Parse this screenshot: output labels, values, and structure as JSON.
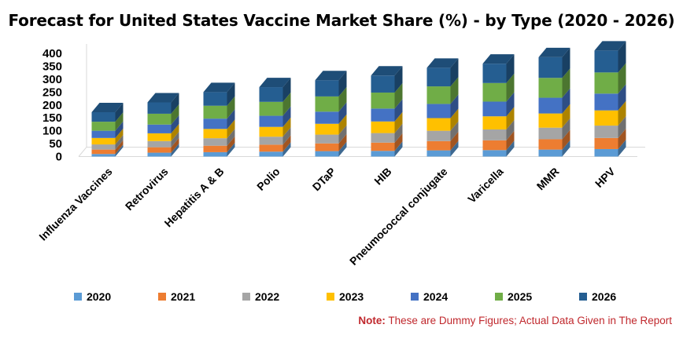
{
  "chart_data": {
    "type": "bar",
    "stacked": true,
    "style": "3d",
    "title": "Forecast for United States Vaccine Market Share (%) - by Type (2020 - 2026)",
    "categories": [
      "Influenza Vaccines",
      "Retrovirus",
      "Hepatitis A & B",
      "Polio",
      "DTaP",
      "HIB",
      "Pneumococcal conjugate",
      "Varicella",
      "MMR",
      "HPV"
    ],
    "series": [
      {
        "name": "2020",
        "color": "#5b9bd5",
        "values": [
          10,
          15,
          17,
          19,
          21,
          22,
          24,
          25,
          27,
          29
        ]
      },
      {
        "name": "2021",
        "color": "#ed7d31",
        "values": [
          17,
          21,
          25,
          27,
          30,
          32,
          36,
          38,
          40,
          43
        ]
      },
      {
        "name": "2022",
        "color": "#a5a5a5",
        "values": [
          20,
          24,
          29,
          31,
          34,
          37,
          40,
          42,
          45,
          48
        ]
      },
      {
        "name": "2023",
        "color": "#ffc000",
        "values": [
          25,
          30,
          36,
          38,
          42,
          45,
          49,
          51,
          55,
          59
        ]
      },
      {
        "name": "2024",
        "color": "#4472c4",
        "values": [
          28,
          34,
          40,
          43,
          47,
          50,
          55,
          57,
          61,
          65
        ]
      },
      {
        "name": "2025",
        "color": "#70ad47",
        "values": [
          35,
          42,
          50,
          54,
          59,
          62,
          68,
          72,
          77,
          82
        ]
      },
      {
        "name": "2026",
        "color": "#255e91",
        "values": [
          37,
          44,
          53,
          57,
          63,
          66,
          72,
          75,
          80,
          85
        ]
      }
    ],
    "ylim": [
      0,
      400
    ],
    "yticks": [
      0,
      50,
      100,
      150,
      200,
      250,
      300,
      350,
      400
    ],
    "grid": false,
    "legend_position": "bottom"
  },
  "note": {
    "label": "Note:",
    "text": " These are Dummy Figures; Actual Data Given in The Report"
  }
}
